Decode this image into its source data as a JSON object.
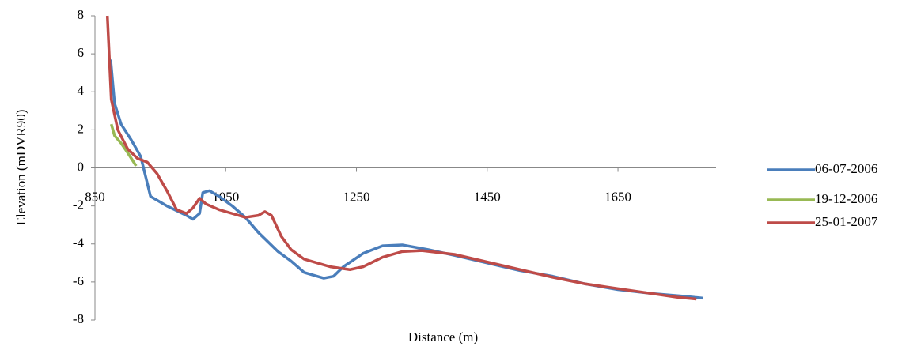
{
  "chart_data": {
    "type": "line",
    "xlabel": "Distance (m)",
    "ylabel": "Elevation (mDVR90)",
    "xlim": [
      850,
      1800
    ],
    "xticks": [
      850,
      1050,
      1250,
      1450,
      1650
    ],
    "ylim": [
      -8,
      8
    ],
    "yticks": [
      -8,
      -6,
      -4,
      -2,
      0,
      2,
      4,
      6,
      8
    ],
    "legend": "right",
    "series": [
      {
        "name": "06-07-2006",
        "color": "#4a7ebb",
        "x": [
          874,
          880,
          890,
          905,
          920,
          935,
          960,
          990,
          1000,
          1010,
          1015,
          1025,
          1040,
          1060,
          1080,
          1100,
          1130,
          1150,
          1170,
          1190,
          1200,
          1215,
          1230,
          1260,
          1290,
          1320,
          1360,
          1400,
          1450,
          1500,
          1550,
          1600,
          1650,
          1700,
          1750,
          1780
        ],
        "values": [
          5.7,
          3.4,
          2.3,
          1.5,
          0.6,
          -1.5,
          -2.0,
          -2.5,
          -2.7,
          -2.4,
          -1.3,
          -1.2,
          -1.5,
          -2.0,
          -2.6,
          -3.4,
          -4.4,
          -4.9,
          -5.5,
          -5.7,
          -5.8,
          -5.7,
          -5.2,
          -4.5,
          -4.1,
          -4.05,
          -4.3,
          -4.6,
          -5.0,
          -5.4,
          -5.7,
          -6.1,
          -6.4,
          -6.6,
          -6.75,
          -6.85
        ]
      },
      {
        "name": "19-12-2006",
        "color": "#98b954",
        "x": [
          875,
          880,
          890,
          900,
          913
        ],
        "values": [
          2.3,
          1.7,
          1.3,
          0.8,
          0.1
        ]
      },
      {
        "name": "25-01-2007",
        "color": "#be4b48",
        "x": [
          869,
          875,
          885,
          900,
          915,
          930,
          945,
          960,
          975,
          990,
          1000,
          1010,
          1020,
          1040,
          1060,
          1080,
          1100,
          1110,
          1120,
          1135,
          1150,
          1170,
          1190,
          1210,
          1240,
          1260,
          1290,
          1320,
          1350,
          1400,
          1450,
          1500,
          1550,
          1600,
          1650,
          1700,
          1740,
          1770
        ],
        "values": [
          8,
          3.6,
          2.0,
          1.0,
          0.5,
          0.3,
          -0.3,
          -1.2,
          -2.2,
          -2.4,
          -2.1,
          -1.6,
          -1.9,
          -2.2,
          -2.4,
          -2.6,
          -2.5,
          -2.3,
          -2.5,
          -3.6,
          -4.3,
          -4.8,
          -5.0,
          -5.2,
          -5.35,
          -5.2,
          -4.7,
          -4.4,
          -4.35,
          -4.55,
          -4.95,
          -5.35,
          -5.75,
          -6.1,
          -6.35,
          -6.6,
          -6.8,
          -6.9
        ]
      }
    ]
  }
}
